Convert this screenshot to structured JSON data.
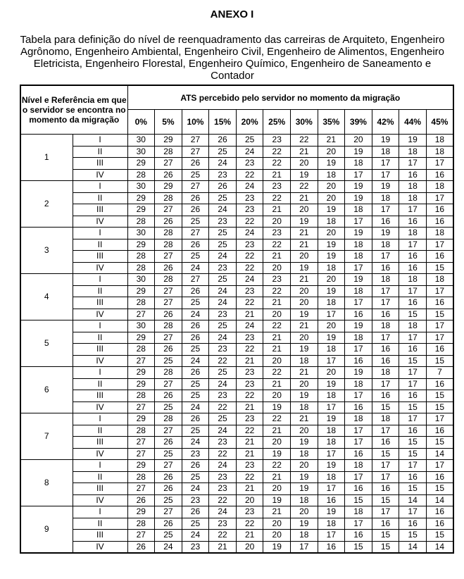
{
  "document": {
    "title": "ANEXO I",
    "subtitle": "Tabela para definição do nível de reenquadramento das carreiras de Arquiteto, Engenheiro Agrônomo, Engenheiro Ambiental, Engenheiro Civil, Engenheiro de Alimentos, Engenheiro Eletricista, Engenheiro Florestal, Engenheiro Químico, Engenheiro de Saneamento e Contador"
  },
  "table": {
    "left_header": "Nível  e Referência em que o servidor se encontra no momento da migração",
    "group_header": "ATS percebido pelo servidor no momento da migração",
    "columns": [
      "0%",
      "5%",
      "10%",
      "15%",
      "20%",
      "25%",
      "30%",
      "35%",
      "39%",
      "42%",
      "44%",
      "45%"
    ],
    "references": [
      "I",
      "II",
      "III",
      "IV"
    ],
    "levels": [
      {
        "level": "1",
        "rows": [
          [
            30,
            29,
            27,
            26,
            25,
            23,
            22,
            21,
            20,
            19,
            19,
            18
          ],
          [
            30,
            28,
            27,
            25,
            24,
            22,
            21,
            20,
            19,
            18,
            18,
            18
          ],
          [
            29,
            27,
            26,
            24,
            23,
            22,
            20,
            19,
            18,
            17,
            17,
            17
          ],
          [
            28,
            26,
            25,
            23,
            22,
            21,
            19,
            18,
            17,
            17,
            16,
            16
          ]
        ]
      },
      {
        "level": "2",
        "rows": [
          [
            30,
            29,
            27,
            26,
            24,
            23,
            22,
            20,
            19,
            19,
            18,
            18
          ],
          [
            29,
            28,
            26,
            25,
            23,
            22,
            21,
            20,
            19,
            18,
            18,
            17
          ],
          [
            29,
            27,
            26,
            24,
            23,
            21,
            20,
            19,
            18,
            17,
            17,
            16
          ],
          [
            28,
            26,
            25,
            23,
            22,
            20,
            19,
            18,
            17,
            16,
            16,
            16
          ]
        ]
      },
      {
        "level": "3",
        "rows": [
          [
            30,
            28,
            27,
            25,
            24,
            23,
            21,
            20,
            19,
            19,
            18,
            18
          ],
          [
            29,
            28,
            26,
            25,
            23,
            22,
            21,
            19,
            18,
            18,
            17,
            17
          ],
          [
            28,
            27,
            25,
            24,
            22,
            21,
            20,
            19,
            18,
            17,
            16,
            16
          ],
          [
            28,
            26,
            24,
            23,
            22,
            20,
            19,
            18,
            17,
            16,
            16,
            15
          ]
        ]
      },
      {
        "level": "4",
        "rows": [
          [
            30,
            28,
            27,
            25,
            24,
            23,
            21,
            20,
            19,
            18,
            18,
            18
          ],
          [
            29,
            27,
            26,
            24,
            23,
            22,
            20,
            19,
            18,
            17,
            17,
            17
          ],
          [
            28,
            27,
            25,
            24,
            22,
            21,
            20,
            18,
            17,
            17,
            16,
            16
          ],
          [
            27,
            26,
            24,
            23,
            21,
            20,
            19,
            17,
            16,
            16,
            15,
            15
          ]
        ]
      },
      {
        "level": "5",
        "rows": [
          [
            30,
            28,
            26,
            25,
            24,
            22,
            21,
            20,
            19,
            18,
            18,
            17
          ],
          [
            29,
            27,
            26,
            24,
            23,
            21,
            20,
            19,
            18,
            17,
            17,
            17
          ],
          [
            28,
            26,
            25,
            23,
            22,
            21,
            19,
            18,
            17,
            16,
            16,
            16
          ],
          [
            27,
            25,
            24,
            22,
            21,
            20,
            18,
            17,
            16,
            16,
            15,
            15
          ]
        ]
      },
      {
        "level": "6",
        "rows": [
          [
            29,
            28,
            26,
            25,
            23,
            22,
            21,
            20,
            19,
            18,
            17,
            7
          ],
          [
            29,
            27,
            25,
            24,
            23,
            21,
            20,
            19,
            18,
            17,
            17,
            16
          ],
          [
            28,
            26,
            25,
            23,
            22,
            20,
            19,
            18,
            17,
            16,
            16,
            15
          ],
          [
            27,
            25,
            24,
            22,
            21,
            19,
            18,
            17,
            16,
            15,
            15,
            15
          ]
        ]
      },
      {
        "level": "7",
        "rows": [
          [
            29,
            28,
            26,
            25,
            23,
            22,
            21,
            19,
            18,
            18,
            17,
            17
          ],
          [
            28,
            27,
            25,
            24,
            22,
            21,
            20,
            18,
            17,
            17,
            16,
            16
          ],
          [
            27,
            26,
            24,
            23,
            21,
            20,
            19,
            18,
            17,
            16,
            15,
            15
          ],
          [
            27,
            25,
            23,
            22,
            21,
            19,
            18,
            17,
            16,
            15,
            15,
            14
          ]
        ]
      },
      {
        "level": "8",
        "rows": [
          [
            29,
            27,
            26,
            24,
            23,
            22,
            20,
            19,
            18,
            17,
            17,
            17
          ],
          [
            28,
            26,
            25,
            23,
            22,
            21,
            19,
            18,
            17,
            17,
            16,
            16
          ],
          [
            27,
            26,
            24,
            23,
            21,
            20,
            19,
            17,
            16,
            16,
            15,
            15
          ],
          [
            26,
            25,
            23,
            22,
            20,
            19,
            18,
            16,
            15,
            15,
            14,
            14
          ]
        ]
      },
      {
        "level": "9",
        "rows": [
          [
            29,
            27,
            26,
            24,
            23,
            21,
            20,
            19,
            18,
            17,
            17,
            16
          ],
          [
            28,
            26,
            25,
            23,
            22,
            20,
            19,
            18,
            17,
            16,
            16,
            16
          ],
          [
            27,
            25,
            24,
            22,
            21,
            20,
            18,
            17,
            16,
            15,
            15,
            15
          ],
          [
            26,
            24,
            23,
            21,
            20,
            19,
            17,
            16,
            15,
            15,
            14,
            14
          ]
        ]
      }
    ]
  }
}
